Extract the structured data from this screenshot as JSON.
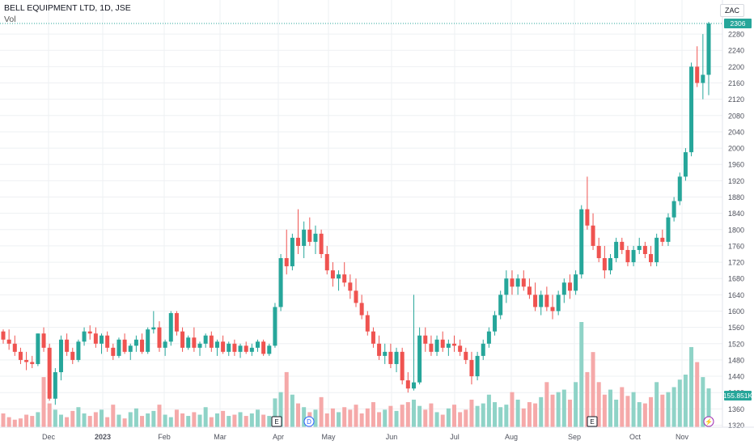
{
  "header": {
    "title": "BELL EQUIPMENT LTD, 1D, JSE",
    "volume_label": "Vol",
    "currency": "ZAC"
  },
  "colors": {
    "up": "#26a69a",
    "down": "#ef5350",
    "up_volume": "#8fd3c7",
    "down_volume": "#f5a9a9",
    "grid": "#eef0f3",
    "axis_text": "#50535e"
  },
  "price_badges": {
    "last_price": "2306",
    "last_volume": "155.851K"
  },
  "markers": [
    {
      "letter": "E",
      "date": "Apr",
      "style": "box"
    },
    {
      "letter": "D",
      "date": "Apr",
      "style": "circle"
    },
    {
      "letter": "E",
      "date": "Sep",
      "style": "box"
    },
    {
      "letter": "⚡",
      "date": "Nov",
      "style": "circle"
    }
  ],
  "chart_data": {
    "type": "candlestick",
    "title": "BELL EQUIPMENT LTD, 1D, JSE",
    "y_ticks": [
      1320,
      1360,
      1400,
      1440,
      1480,
      1520,
      1560,
      1600,
      1640,
      1680,
      1720,
      1760,
      1800,
      1840,
      1880,
      1920,
      1960,
      2000,
      2040,
      2080,
      2120,
      2160,
      2200,
      2240,
      2280
    ],
    "ylim": [
      1315,
      2310
    ],
    "x_ticks": [
      "Dec",
      "2023",
      "Feb",
      "Mar",
      "Apr",
      "May",
      "Jun",
      "Jul",
      "Aug",
      "Sep",
      "Oct",
      "Nov"
    ],
    "series": [
      {
        "name": "Price",
        "values": [
          [
            1550,
            1555,
            1520,
            1530
          ],
          [
            1530,
            1555,
            1505,
            1520
          ],
          [
            1520,
            1540,
            1490,
            1500
          ],
          [
            1500,
            1510,
            1470,
            1480
          ],
          [
            1480,
            1500,
            1455,
            1475
          ],
          [
            1475,
            1490,
            1460,
            1470
          ],
          [
            1470,
            1545,
            1465,
            1545
          ],
          [
            1545,
            1560,
            1500,
            1510
          ],
          [
            1510,
            1520,
            1380,
            1385
          ],
          [
            1385,
            1460,
            1370,
            1450
          ],
          [
            1450,
            1540,
            1430,
            1530
          ],
          [
            1530,
            1545,
            1490,
            1500
          ],
          [
            1500,
            1510,
            1470,
            1480
          ],
          [
            1480,
            1530,
            1475,
            1525
          ],
          [
            1525,
            1560,
            1515,
            1550
          ],
          [
            1550,
            1565,
            1530,
            1545
          ],
          [
            1545,
            1560,
            1510,
            1520
          ],
          [
            1520,
            1545,
            1495,
            1540
          ],
          [
            1540,
            1550,
            1500,
            1510
          ],
          [
            1510,
            1520,
            1480,
            1490
          ],
          [
            1490,
            1535,
            1485,
            1530
          ],
          [
            1530,
            1545,
            1495,
            1500
          ],
          [
            1500,
            1520,
            1480,
            1515
          ],
          [
            1515,
            1540,
            1500,
            1530
          ],
          [
            1530,
            1545,
            1495,
            1500
          ],
          [
            1500,
            1560,
            1495,
            1555
          ],
          [
            1555,
            1600,
            1545,
            1560
          ],
          [
            1560,
            1575,
            1500,
            1510
          ],
          [
            1510,
            1530,
            1490,
            1525
          ],
          [
            1525,
            1600,
            1515,
            1595
          ],
          [
            1595,
            1600,
            1540,
            1550
          ],
          [
            1550,
            1560,
            1500,
            1510
          ],
          [
            1510,
            1540,
            1505,
            1535
          ],
          [
            1535,
            1560,
            1500,
            1510
          ],
          [
            1510,
            1525,
            1490,
            1520
          ],
          [
            1520,
            1545,
            1510,
            1540
          ],
          [
            1540,
            1550,
            1500,
            1510
          ],
          [
            1510,
            1530,
            1490,
            1525
          ],
          [
            1525,
            1540,
            1495,
            1500
          ],
          [
            1500,
            1525,
            1490,
            1520
          ],
          [
            1520,
            1530,
            1490,
            1500
          ],
          [
            1500,
            1520,
            1485,
            1515
          ],
          [
            1515,
            1525,
            1495,
            1500
          ],
          [
            1500,
            1520,
            1490,
            1510
          ],
          [
            1510,
            1530,
            1500,
            1525
          ],
          [
            1525,
            1530,
            1490,
            1495
          ],
          [
            1495,
            1520,
            1490,
            1515
          ],
          [
            1515,
            1620,
            1510,
            1610
          ],
          [
            1610,
            1740,
            1600,
            1730
          ],
          [
            1730,
            1800,
            1690,
            1710
          ],
          [
            1710,
            1790,
            1700,
            1780
          ],
          [
            1780,
            1850,
            1740,
            1760
          ],
          [
            1760,
            1820,
            1730,
            1800
          ],
          [
            1800,
            1830,
            1760,
            1770
          ],
          [
            1770,
            1810,
            1740,
            1790
          ],
          [
            1790,
            1800,
            1730,
            1740
          ],
          [
            1740,
            1760,
            1690,
            1700
          ],
          [
            1700,
            1720,
            1660,
            1680
          ],
          [
            1680,
            1700,
            1650,
            1690
          ],
          [
            1690,
            1720,
            1660,
            1670
          ],
          [
            1670,
            1690,
            1630,
            1650
          ],
          [
            1650,
            1680,
            1610,
            1620
          ],
          [
            1620,
            1640,
            1580,
            1590
          ],
          [
            1590,
            1600,
            1540,
            1550
          ],
          [
            1550,
            1560,
            1510,
            1520
          ],
          [
            1520,
            1540,
            1480,
            1490
          ],
          [
            1490,
            1520,
            1470,
            1500
          ],
          [
            1500,
            1520,
            1460,
            1470
          ],
          [
            1470,
            1510,
            1450,
            1500
          ],
          [
            1500,
            1510,
            1420,
            1430
          ],
          [
            1430,
            1450,
            1400,
            1410
          ],
          [
            1410,
            1640,
            1405,
            1425
          ],
          [
            1425,
            1560,
            1420,
            1540
          ],
          [
            1540,
            1560,
            1500,
            1520
          ],
          [
            1520,
            1540,
            1490,
            1500
          ],
          [
            1500,
            1540,
            1490,
            1530
          ],
          [
            1530,
            1550,
            1500,
            1510
          ],
          [
            1510,
            1530,
            1490,
            1520
          ],
          [
            1520,
            1540,
            1500,
            1515
          ],
          [
            1515,
            1530,
            1490,
            1500
          ],
          [
            1500,
            1510,
            1470,
            1480
          ],
          [
            1480,
            1500,
            1420,
            1440
          ],
          [
            1440,
            1500,
            1430,
            1490
          ],
          [
            1490,
            1530,
            1480,
            1520
          ],
          [
            1520,
            1560,
            1510,
            1550
          ],
          [
            1550,
            1600,
            1540,
            1590
          ],
          [
            1590,
            1650,
            1580,
            1640
          ],
          [
            1640,
            1700,
            1620,
            1680
          ],
          [
            1680,
            1700,
            1640,
            1660
          ],
          [
            1660,
            1690,
            1640,
            1680
          ],
          [
            1680,
            1700,
            1650,
            1660
          ],
          [
            1660,
            1680,
            1630,
            1640
          ],
          [
            1640,
            1670,
            1600,
            1610
          ],
          [
            1610,
            1650,
            1590,
            1640
          ],
          [
            1640,
            1660,
            1600,
            1610
          ],
          [
            1610,
            1640,
            1580,
            1600
          ],
          [
            1600,
            1650,
            1590,
            1640
          ],
          [
            1640,
            1680,
            1620,
            1670
          ],
          [
            1670,
            1690,
            1630,
            1650
          ],
          [
            1650,
            1700,
            1640,
            1690
          ],
          [
            1690,
            1860,
            1680,
            1850
          ],
          [
            1850,
            1930,
            1800,
            1810
          ],
          [
            1810,
            1840,
            1750,
            1760
          ],
          [
            1760,
            1780,
            1720,
            1730
          ],
          [
            1730,
            1760,
            1680,
            1700
          ],
          [
            1700,
            1740,
            1690,
            1730
          ],
          [
            1730,
            1780,
            1720,
            1770
          ],
          [
            1770,
            1780,
            1740,
            1750
          ],
          [
            1750,
            1760,
            1710,
            1720
          ],
          [
            1720,
            1760,
            1710,
            1750
          ],
          [
            1750,
            1780,
            1740,
            1760
          ],
          [
            1760,
            1770,
            1730,
            1740
          ],
          [
            1740,
            1760,
            1710,
            1720
          ],
          [
            1720,
            1790,
            1710,
            1780
          ],
          [
            1780,
            1800,
            1760,
            1770
          ],
          [
            1770,
            1840,
            1760,
            1830
          ],
          [
            1830,
            1880,
            1820,
            1870
          ],
          [
            1870,
            1940,
            1860,
            1930
          ],
          [
            1930,
            2000,
            1920,
            1990
          ],
          [
            1990,
            2210,
            1980,
            2200
          ],
          [
            2200,
            2250,
            2150,
            2160
          ],
          [
            2160,
            2280,
            2120,
            2180
          ],
          [
            2180,
            2310,
            2130,
            2306
          ]
        ]
      }
    ],
    "volume": [
      55,
      40,
      30,
      35,
      50,
      45,
      60,
      200,
      95,
      70,
      50,
      40,
      65,
      80,
      55,
      45,
      60,
      70,
      40,
      90,
      50,
      35,
      60,
      75,
      45,
      55,
      65,
      90,
      50,
      40,
      70,
      55,
      45,
      60,
      50,
      80,
      40,
      55,
      65,
      45,
      50,
      60,
      45,
      55,
      70,
      50,
      45,
      115,
      140,
      220,
      130,
      95,
      80,
      60,
      70,
      120,
      55,
      75,
      60,
      80,
      70,
      90,
      55,
      75,
      100,
      60,
      70,
      85,
      65,
      90,
      100,
      110,
      85,
      70,
      95,
      60,
      50,
      75,
      90,
      60,
      70,
      110,
      85,
      95,
      130,
      100,
      80,
      90,
      140,
      110,
      75,
      100,
      95,
      120,
      180,
      130,
      140,
      150,
      110,
      180,
      420,
      220,
      300,
      180,
      130,
      150,
      110,
      160,
      125,
      140,
      100,
      95,
      120,
      180,
      130,
      140,
      160,
      190,
      210,
      320,
      260,
      200,
      155
    ]
  }
}
